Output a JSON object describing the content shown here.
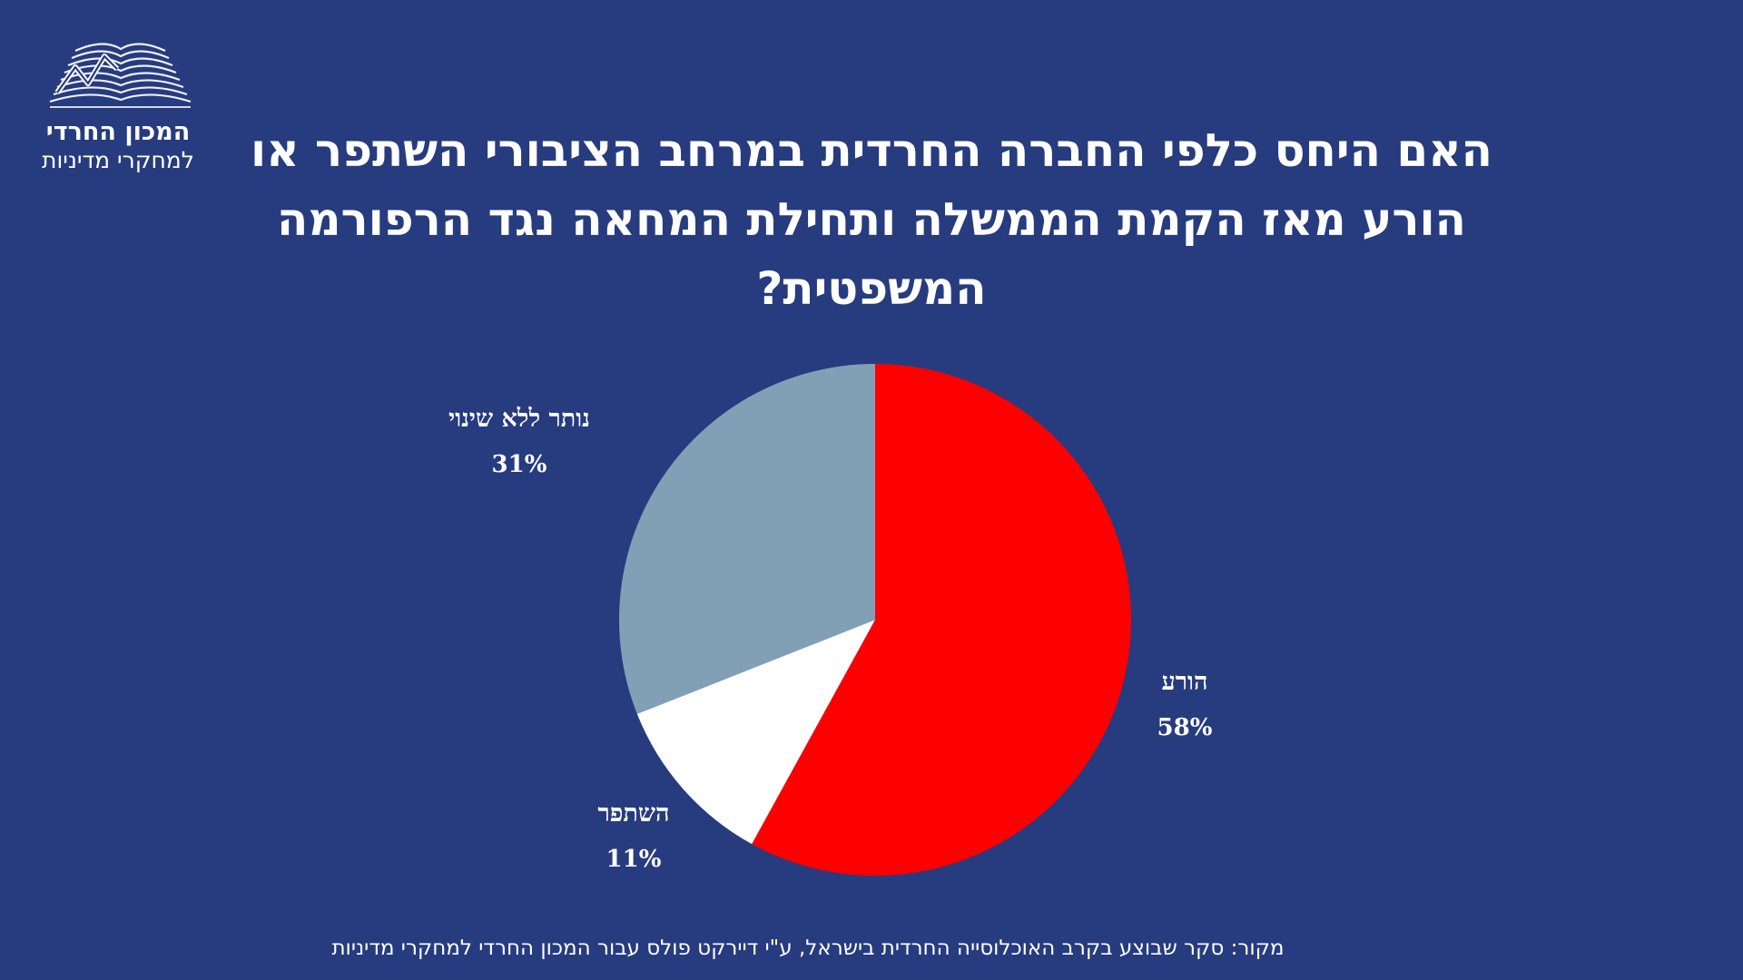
{
  "logo": {
    "line1": "המכון החרדי",
    "line2": "למחקרי מדיניות"
  },
  "chart_data": {
    "type": "pie",
    "title": "האם היחס כלפי החברה החרדית במרחב הציבורי השתפר או הורע מאז הקמת הממשלה ותחילת המחאה נגד הרפורמה המשפטית?",
    "unit": "%",
    "legend": "none",
    "start_angle": "12 o'clock",
    "direction": "clockwise",
    "slices": [
      {
        "label": "הורע",
        "value": 58,
        "display": "58%",
        "color": "#ff0000"
      },
      {
        "label": "השתפר",
        "value": 11,
        "display": "11%",
        "color": "#ffffff"
      },
      {
        "label": "נותר ללא שינוי",
        "value": 31,
        "display": "31%",
        "color": "#81a0b5"
      }
    ]
  },
  "source": "מקור: סקר שבוצע בקרב האוכלוסייה החרדית בישראל, ע\"י דיירקט פולס עבור המכון החרדי למחקרי מדיניות",
  "colors": {
    "background": "#273b7f",
    "text": "#ffffff"
  }
}
